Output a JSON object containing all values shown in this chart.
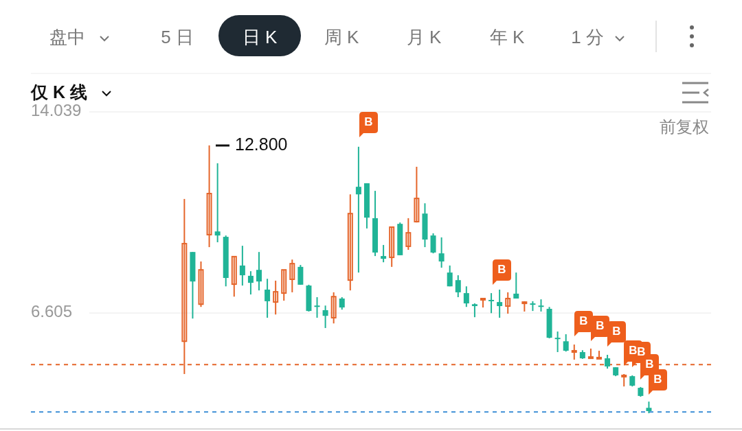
{
  "chart_data": {
    "type": "candlestick",
    "categories": [
      null,
      null,
      null,
      null,
      null,
      null,
      null,
      null,
      null,
      null,
      null,
      null,
      null,
      null,
      null,
      null,
      null,
      null,
      null,
      null,
      null,
      null,
      null,
      null,
      null,
      null,
      null,
      null,
      null,
      null,
      null,
      null,
      null,
      null,
      null,
      null,
      null,
      null,
      null,
      null,
      null,
      null,
      null,
      null,
      null,
      null,
      null,
      null,
      null,
      null,
      null,
      null,
      null,
      null,
      null,
      null,
      null,
      null,
      null,
      null,
      null,
      null,
      null,
      null,
      null,
      null,
      null,
      null,
      null,
      null,
      null,
      null,
      null,
      null,
      null,
      null,
      null,
      null,
      null,
      null,
      null,
      null
    ],
    "ohlc": [
      null,
      null,
      null,
      null,
      null,
      null,
      null,
      null,
      null,
      null,
      null,
      null,
      null,
      null,
      null,
      null,
      null,
      null,
      [
        5.56,
        10.82,
        4.35,
        9.17
      ],
      [
        8.86,
        8.86,
        6.4,
        7.77
      ],
      [
        6.93,
        8.51,
        6.83,
        8.2
      ],
      [
        9.5,
        12.8,
        9.04,
        11.02
      ],
      [
        9.62,
        12.14,
        9.22,
        9.47
      ],
      [
        9.42,
        9.47,
        7.59,
        7.9
      ],
      [
        7.67,
        8.69,
        7.21,
        8.69
      ],
      [
        8.36,
        9.09,
        7.62,
        8.0
      ],
      [
        7.98,
        8.15,
        7.29,
        7.72
      ],
      [
        8.2,
        8.86,
        7.44,
        7.77
      ],
      [
        7.47,
        7.87,
        6.43,
        7.04
      ],
      [
        7.01,
        7.8,
        6.55,
        7.39
      ],
      [
        7.34,
        8.2,
        7.06,
        8.2
      ],
      [
        7.85,
        8.58,
        7.37,
        8.43
      ],
      [
        8.31,
        8.38,
        7.65,
        7.65
      ],
      [
        7.62,
        7.65,
        6.66,
        6.68
      ],
      [
        6.88,
        7.19,
        6.43,
        6.83
      ],
      [
        6.71,
        6.88,
        6.05,
        6.5
      ],
      [
        6.43,
        7.37,
        6.22,
        7.21
      ],
      [
        7.14,
        7.19,
        6.73,
        6.81
      ],
      [
        7.82,
        10.99,
        7.44,
        10.28
      ],
      [
        11.27,
        12.75,
        8.1,
        10.99
      ],
      [
        11.4,
        11.4,
        9.73,
        10.13
      ],
      [
        10.11,
        11.12,
        8.71,
        8.84
      ],
      [
        8.71,
        9.12,
        8.48,
        8.61
      ],
      [
        8.66,
        9.78,
        8.31,
        9.78
      ],
      [
        9.9,
        9.95,
        8.74,
        8.74
      ],
      [
        9.07,
        10.11,
        8.94,
        9.57
      ],
      [
        9.98,
        12.01,
        9.95,
        10.84
      ],
      [
        10.28,
        10.66,
        9.04,
        9.32
      ],
      [
        9.47,
        9.55,
        8.81,
        8.84
      ],
      [
        8.81,
        9.4,
        8.28,
        8.51
      ],
      [
        8.1,
        8.36,
        7.59,
        7.59
      ],
      [
        7.82,
        8.0,
        7.19,
        7.37
      ],
      [
        7.34,
        7.59,
        6.83,
        6.96
      ],
      [
        6.93,
        6.96,
        6.45,
        6.86
      ],
      [
        7.09,
        7.14,
        6.81,
        7.14
      ],
      [
        7.09,
        7.34,
        6.6,
        7.04
      ],
      [
        7.01,
        7.47,
        6.43,
        6.86
      ],
      [
        6.86,
        7.37,
        6.58,
        7.14
      ],
      [
        7.32,
        8.1,
        7.14,
        7.14
      ],
      [
        6.96,
        7.04,
        6.66,
        7.01
      ],
      [
        6.96,
        7.04,
        6.68,
        6.91
      ],
      [
        6.88,
        7.11,
        6.66,
        6.83
      ],
      [
        6.76,
        6.83,
        5.67,
        5.69
      ],
      [
        5.69,
        5.92,
        5.16,
        5.64
      ],
      [
        5.56,
        5.82,
        5.18,
        5.21
      ],
      [
        5.16,
        5.44,
        4.88,
        5.21
      ],
      [
        5.16,
        5.23,
        4.91,
        4.93
      ],
      [
        4.93,
        5.29,
        4.91,
        4.98
      ],
      [
        4.91,
        5.21,
        4.91,
        4.96
      ],
      [
        4.93,
        5.06,
        4.55,
        4.63
      ],
      [
        4.6,
        4.6,
        4.27,
        4.3
      ],
      [
        4.25,
        4.35,
        3.89,
        4.3
      ],
      [
        4.27,
        4.3,
        3.89,
        3.92
      ],
      [
        3.84,
        3.87,
        3.51,
        3.54
      ],
      [
        3.1,
        3.33,
        2.9,
        2.98
      ],
      null,
      null,
      null,
      null,
      null,
      null,
      null
    ],
    "colors": [
      null,
      null,
      null,
      null,
      null,
      null,
      null,
      null,
      null,
      null,
      null,
      null,
      null,
      null,
      null,
      null,
      null,
      null,
      "#e5652a",
      "#20b497",
      "#e5652a",
      "#e5652a",
      "#20b497",
      "#20b497",
      "#e5652a",
      "#20b497",
      "#20b497",
      "#20b497",
      "#20b497",
      "#e5652a",
      "#e5652a",
      "#e5652a",
      "#20b497",
      "#20b497",
      "#20b497",
      "#20b497",
      "#e5652a",
      "#20b497",
      "#e5652a",
      "#20b497",
      "#20b497",
      "#20b497",
      "#20b497",
      "#e5652a",
      "#20b497",
      "#e5652a",
      "#e5652a",
      "#20b497",
      "#20b497",
      "#20b497",
      "#20b497",
      "#20b497",
      "#20b497",
      "#20b497",
      "#e5652a",
      "#20b497",
      "#20b497",
      "#e5652a",
      "#20b497",
      "#e5652a",
      "#20b497",
      "#20b497",
      "#20b497",
      "#20b497",
      "#20b497",
      "#e5652a",
      "#20b497",
      "#e5652a",
      "#e5652a",
      "#20b497",
      "#20b497",
      "#e5652a",
      "#20b497",
      "#20b497",
      "#20b497",
      null,
      null,
      null,
      null,
      null,
      null,
      null
    ],
    "ylim": [
      2.32,
      14.039
    ],
    "yticks": [
      14.039,
      6.605
    ],
    "tick_labels": "y",
    "grid": "y",
    "ref_lines": [
      {
        "axis": "y",
        "value": 4.7,
        "color": "#e5652a",
        "line_style": "dashed"
      },
      {
        "axis": "y",
        "value": 2.95,
        "color": "#3d8fd6",
        "line_style": "dashed"
      }
    ],
    "annotations": [
      "盘中",
      "5 日",
      "日 K",
      "周 K",
      "月 K",
      "年 K",
      "1 分",
      "仅 K 线",
      "前复权",
      "12.800",
      "B",
      "B",
      "B",
      "B",
      "B",
      "B",
      "B",
      "B",
      "B"
    ]
  }
}
